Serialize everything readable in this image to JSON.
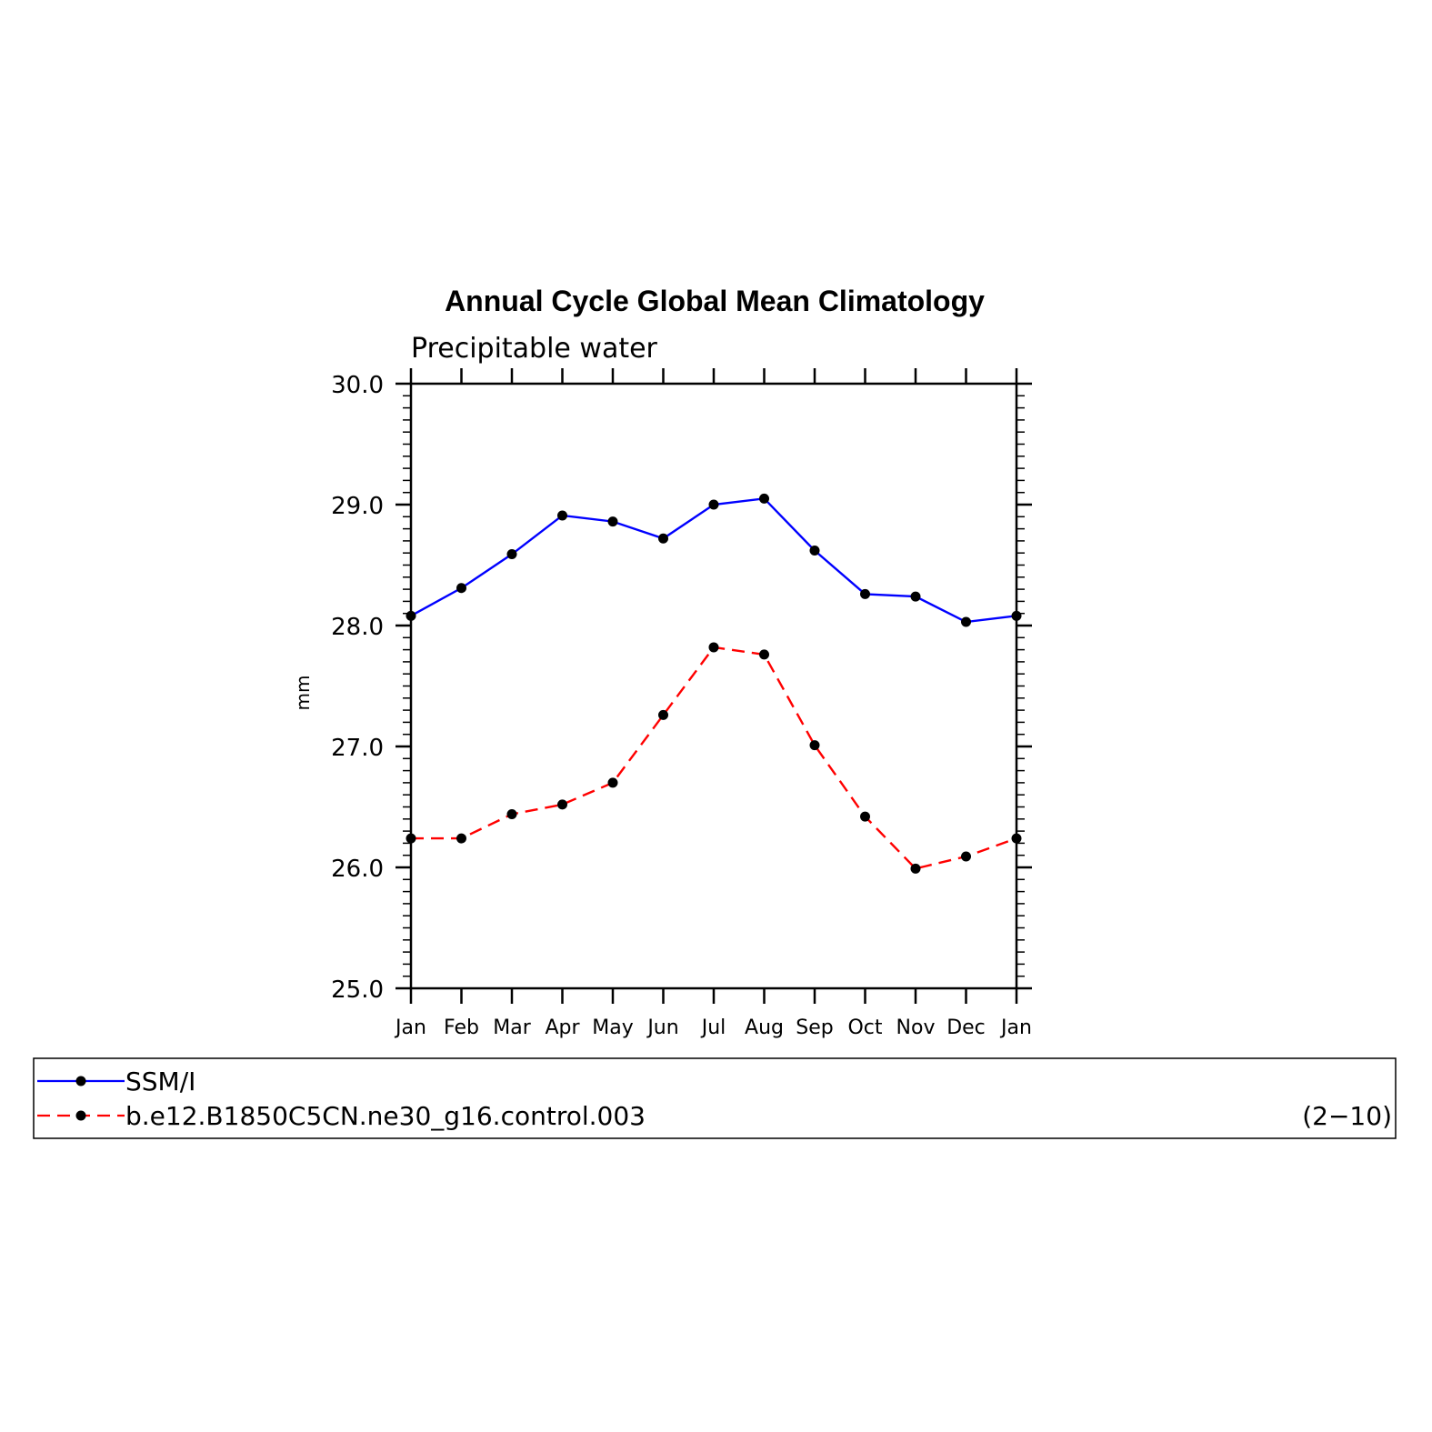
{
  "chart_data": {
    "type": "line",
    "title": "Annual Cycle Global Mean Climatology",
    "subtitle": "Precipitable water",
    "ylabel": "mm",
    "xlabel": "",
    "ylim": [
      25.0,
      30.0
    ],
    "yticks": [
      "25.0",
      "26.0",
      "27.0",
      "28.0",
      "29.0",
      "30.0"
    ],
    "categories": [
      "Jan",
      "Feb",
      "Mar",
      "Apr",
      "May",
      "Jun",
      "Jul",
      "Aug",
      "Sep",
      "Oct",
      "Nov",
      "Dec",
      "Jan"
    ],
    "grid": false,
    "legend_placement": "bottom",
    "series": [
      {
        "name": "SSM/I",
        "color": "#0000ff",
        "style": "solid",
        "values": [
          28.08,
          28.31,
          28.59,
          28.91,
          28.86,
          28.72,
          29.0,
          29.05,
          28.62,
          28.26,
          28.24,
          28.03,
          28.08
        ]
      },
      {
        "name": "b.e12.B1850C5CN.ne30_g16.control.003",
        "color": "#ff0000",
        "style": "dashed",
        "values": [
          26.24,
          26.24,
          26.44,
          26.52,
          26.7,
          27.26,
          27.82,
          27.76,
          27.01,
          26.42,
          25.99,
          26.09,
          26.24
        ]
      }
    ],
    "legend_note": "(2−10)"
  }
}
